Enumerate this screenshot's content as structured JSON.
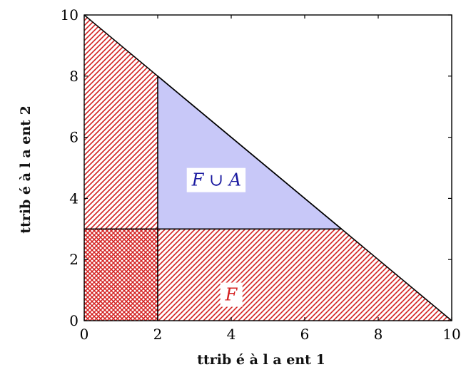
{
  "chart_data": {
    "type": "area",
    "xlabel": "ttrib é à l a ent 1",
    "ylabel": "ttrib é à l a ent 2",
    "xlim": [
      0,
      10
    ],
    "ylim": [
      0,
      10
    ],
    "xticks": [
      "0",
      "2",
      "4",
      "6",
      "8",
      "10"
    ],
    "yticks": [
      "0",
      "2",
      "4",
      "6",
      "8",
      "10"
    ],
    "grid": false,
    "regions": [
      {
        "name": "F",
        "label": "F",
        "fill": "hatched",
        "color": "#d42020",
        "vertices": [
          [
            0,
            10
          ],
          [
            0,
            0
          ],
          [
            10,
            0
          ]
        ],
        "label_at": [
          4,
          0.85
        ]
      },
      {
        "name": "F ∪ A",
        "label": "F ∪ A",
        "fill": "solid",
        "color": "#c8c8f8",
        "label_color": "#1a1aa0",
        "vertices": [
          [
            2,
            3
          ],
          [
            2,
            8
          ],
          [
            7,
            3
          ]
        ],
        "label_at": [
          3.6,
          4.6
        ]
      },
      {
        "name": "crosshatch-overlap",
        "fill": "crosshatched",
        "color": "#d42020",
        "vertices": [
          [
            0,
            0
          ],
          [
            2,
            0
          ],
          [
            2,
            3
          ],
          [
            0,
            3
          ]
        ]
      }
    ],
    "lines": [
      {
        "name": "diagonal",
        "points": [
          [
            0,
            10
          ],
          [
            10,
            0
          ]
        ]
      },
      {
        "name": "upper-boundary",
        "points": [
          [
            2,
            8
          ],
          [
            7,
            3
          ]
        ]
      },
      {
        "name": "x2-equals-3",
        "points": [
          [
            0,
            3
          ],
          [
            7,
            3
          ]
        ]
      },
      {
        "name": "x1-equals-2",
        "points": [
          [
            2,
            0
          ],
          [
            2,
            8
          ]
        ]
      }
    ]
  }
}
